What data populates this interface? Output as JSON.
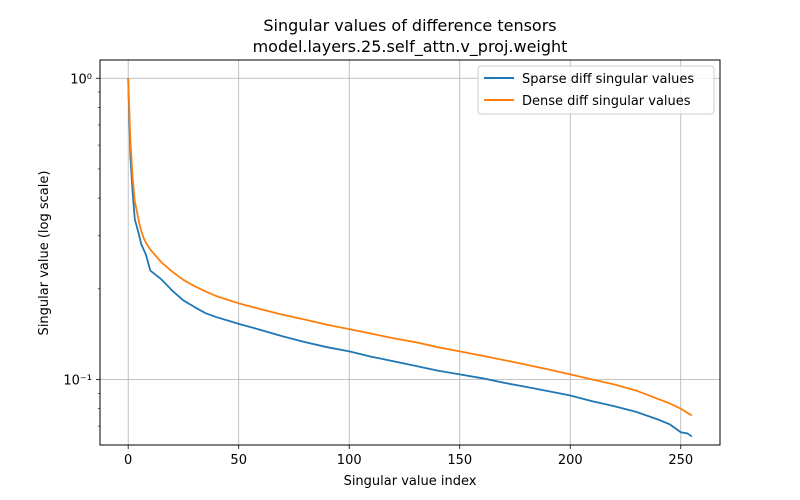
{
  "chart_data": {
    "type": "line",
    "title": "Singular values of difference tensors",
    "subtitle": "model.layers.25.self_attn.v_proj.weight",
    "xlabel": "Singular value index",
    "ylabel": "Singular value (log scale)",
    "xlim": [
      -12.75,
      267.75
    ],
    "ylim": [
      0.0606,
      1.15
    ],
    "yscale": "log",
    "grid": true,
    "legend_position": "top-right",
    "x_ticks": [
      0,
      50,
      100,
      150,
      200,
      250
    ],
    "x_tick_labels": [
      "0",
      "50",
      "100",
      "150",
      "200",
      "250"
    ],
    "y_ticks": [
      1,
      0.1
    ],
    "y_tick_labels": [
      "10⁰",
      "10⁻¹"
    ],
    "series": [
      {
        "name": "Sparse diff singular values",
        "color": "#1f77b4",
        "points": [
          [
            0,
            1.0
          ],
          [
            1,
            0.55
          ],
          [
            2,
            0.42
          ],
          [
            3,
            0.34
          ],
          [
            4,
            0.32
          ],
          [
            5,
            0.3
          ],
          [
            6,
            0.28
          ],
          [
            7,
            0.27
          ],
          [
            8,
            0.26
          ],
          [
            10,
            0.23
          ],
          [
            15,
            0.215
          ],
          [
            20,
            0.197
          ],
          [
            25,
            0.183
          ],
          [
            30,
            0.174
          ],
          [
            35,
            0.166
          ],
          [
            40,
            0.161
          ],
          [
            45,
            0.157
          ],
          [
            50,
            0.153
          ],
          [
            60,
            0.146
          ],
          [
            70,
            0.139
          ],
          [
            80,
            0.133
          ],
          [
            90,
            0.128
          ],
          [
            100,
            0.124
          ],
          [
            110,
            0.119
          ],
          [
            120,
            0.115
          ],
          [
            130,
            0.111
          ],
          [
            140,
            0.107
          ],
          [
            150,
            0.104
          ],
          [
            160,
            0.101
          ],
          [
            170,
            0.0975
          ],
          [
            180,
            0.0945
          ],
          [
            190,
            0.0915
          ],
          [
            200,
            0.0885
          ],
          [
            210,
            0.0847
          ],
          [
            220,
            0.0815
          ],
          [
            230,
            0.078
          ],
          [
            240,
            0.0735
          ],
          [
            245,
            0.071
          ],
          [
            250,
            0.0668
          ],
          [
            253,
            0.0662
          ],
          [
            255,
            0.0647
          ]
        ]
      },
      {
        "name": "Dense diff singular values",
        "color": "#ff7f0e",
        "points": [
          [
            0,
            1.0
          ],
          [
            1,
            0.62
          ],
          [
            2,
            0.47
          ],
          [
            3,
            0.39
          ],
          [
            4,
            0.36
          ],
          [
            5,
            0.33
          ],
          [
            6,
            0.31
          ],
          [
            7,
            0.295
          ],
          [
            8,
            0.285
          ],
          [
            10,
            0.27
          ],
          [
            15,
            0.245
          ],
          [
            20,
            0.228
          ],
          [
            25,
            0.214
          ],
          [
            30,
            0.204
          ],
          [
            35,
            0.196
          ],
          [
            40,
            0.189
          ],
          [
            45,
            0.184
          ],
          [
            50,
            0.179
          ],
          [
            60,
            0.171
          ],
          [
            70,
            0.164
          ],
          [
            80,
            0.158
          ],
          [
            90,
            0.152
          ],
          [
            100,
            0.147
          ],
          [
            110,
            0.142
          ],
          [
            120,
            0.137
          ],
          [
            130,
            0.133
          ],
          [
            140,
            0.128
          ],
          [
            150,
            0.124
          ],
          [
            160,
            0.12
          ],
          [
            170,
            0.116
          ],
          [
            180,
            0.112
          ],
          [
            190,
            0.108
          ],
          [
            200,
            0.104
          ],
          [
            210,
            0.1
          ],
          [
            220,
            0.0962
          ],
          [
            230,
            0.0918
          ],
          [
            240,
            0.086
          ],
          [
            245,
            0.0833
          ],
          [
            250,
            0.08
          ],
          [
            253,
            0.0775
          ],
          [
            255,
            0.076
          ]
        ]
      }
    ]
  }
}
